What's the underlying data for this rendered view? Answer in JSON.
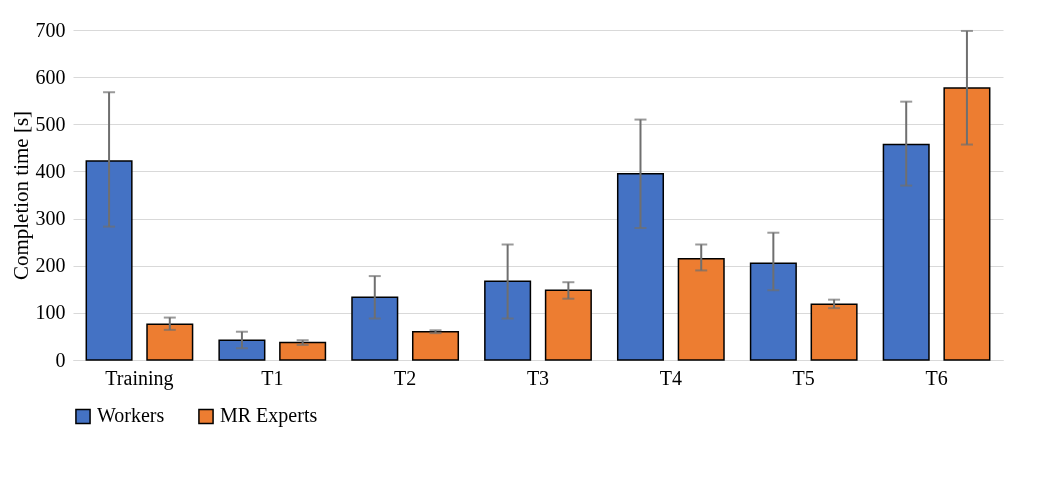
{
  "chart_data": {
    "type": "bar",
    "ylabel": "Completion time [s]",
    "categories": [
      "Training",
      "T1",
      "T2",
      "T3",
      "T4",
      "T5",
      "T6"
    ],
    "series": [
      {
        "name": "Workers",
        "color": "#4472c4",
        "values": [
          422,
          42,
          133,
          167,
          395,
          205,
          457
        ],
        "errors": [
          [
            283,
            568
          ],
          [
            25,
            60
          ],
          [
            88,
            178
          ],
          [
            88,
            245
          ],
          [
            280,
            510
          ],
          [
            148,
            270
          ],
          [
            370,
            548
          ]
        ]
      },
      {
        "name": "MR Experts",
        "color": "#ed7d31",
        "values": [
          76,
          37,
          60,
          148,
          215,
          118,
          577
        ],
        "errors": [
          [
            64,
            90
          ],
          [
            32,
            42
          ],
          [
            57,
            63
          ],
          [
            130,
            165
          ],
          [
            190,
            245
          ],
          [
            110,
            128
          ],
          [
            457,
            698
          ]
        ]
      }
    ],
    "ylim": [
      0,
      700
    ],
    "yticks": [
      0,
      100,
      200,
      300,
      400,
      500,
      600,
      700
    ],
    "grid": "y",
    "legend": "bottom"
  }
}
